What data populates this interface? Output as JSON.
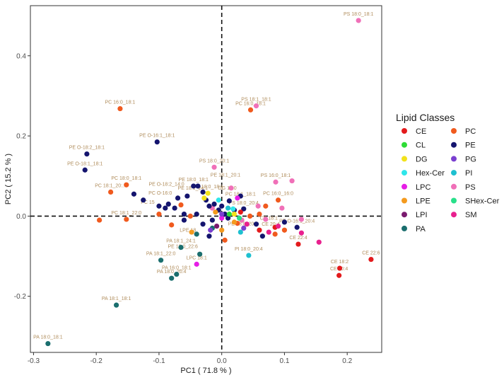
{
  "chart_data": {
    "type": "scatter",
    "title": "",
    "xlabel": "PC1 ( 71.8 % )",
    "ylabel": "PC2 ( 15.2 % )",
    "xlim": [
      -0.305,
      0.255
    ],
    "ylim": [
      -0.34,
      0.525
    ],
    "xticks": [
      -0.3,
      -0.2,
      -0.1,
      0.0,
      0.1,
      0.2
    ],
    "xtick_labels": [
      "-0.3",
      "-0.2",
      "-0.1",
      "0.0",
      "0.1",
      "0.2"
    ],
    "yticks": [
      -0.2,
      0.0,
      0.2,
      0.4
    ],
    "ytick_labels": [
      "-0.2",
      "0.0",
      "0.2",
      "0.4"
    ],
    "reference_lines": {
      "x": 0,
      "y": 0,
      "style": "dashed"
    },
    "grid": false,
    "legend": {
      "title": "Lipid Classes",
      "placement": "right",
      "entries": [
        {
          "name": "CE",
          "color": "#e31a1c"
        },
        {
          "name": "PC",
          "color": "#f05a1e"
        },
        {
          "name": "CL",
          "color": "#2edc36"
        },
        {
          "name": "PE",
          "color": "#14146e"
        },
        {
          "name": "DG",
          "color": "#f2e21b"
        },
        {
          "name": "PG",
          "color": "#7a3fd0"
        },
        {
          "name": "Hex-Cer",
          "color": "#2fe6ea"
        },
        {
          "name": "PI",
          "color": "#1ec0d0"
        },
        {
          "name": "LPC",
          "color": "#e61ee6"
        },
        {
          "name": "PS",
          "color": "#f070b8"
        },
        {
          "name": "LPE",
          "color": "#f49a1e"
        },
        {
          "name": "SHex-Cer",
          "color": "#28e08a"
        },
        {
          "name": "LPI",
          "color": "#7a1a6e"
        },
        {
          "name": "SM",
          "color": "#e8208e"
        },
        {
          "name": "PA",
          "color": "#1a6e6e"
        }
      ]
    },
    "series": [
      {
        "name": "PS",
        "points": [
          {
            "x": 0.218,
            "y": 0.488,
            "label": "PS 18:0_18:1"
          },
          {
            "x": 0.055,
            "y": 0.275,
            "label": "PS 18:1_18:1"
          },
          {
            "x": -0.012,
            "y": 0.122,
            "label": "PS 18:0_20:1"
          },
          {
            "x": 0.086,
            "y": 0.085,
            "label": "PS 16:0_18:1"
          },
          {
            "x": 0.112,
            "y": 0.088
          },
          {
            "x": 0.015,
            "y": 0.07
          },
          {
            "x": 0.058,
            "y": 0.025
          },
          {
            "x": 0.096,
            "y": 0.02
          },
          {
            "x": 0.07,
            "y": -0.008
          },
          {
            "x": 0.032,
            "y": -0.01
          },
          {
            "x": -0.015,
            "y": 0.02
          },
          {
            "x": 0.127,
            "y": -0.008
          }
        ]
      },
      {
        "name": "PC",
        "points": [
          {
            "x": -0.162,
            "y": 0.268,
            "label": "PC 16:0_18:1"
          },
          {
            "x": 0.046,
            "y": 0.265,
            "label": "PC 16:0_18:1"
          },
          {
            "x": -0.177,
            "y": 0.06,
            "label": "PC 18:1_20:..."
          },
          {
            "x": -0.152,
            "y": 0.078,
            "label": "PC 18:0_18:1"
          },
          {
            "x": -0.195,
            "y": -0.01
          },
          {
            "x": -0.152,
            "y": -0.008,
            "label": "PC 18:1_22:0"
          },
          {
            "x": -0.1,
            "y": 0.005
          },
          {
            "x": -0.08,
            "y": -0.022
          },
          {
            "x": -0.065,
            "y": 0.028
          },
          {
            "x": -0.05,
            "y": 0.0
          },
          {
            "x": 0.09,
            "y": 0.04,
            "label": "PC 16:0_16:0"
          },
          {
            "x": 0.07,
            "y": 0.025
          },
          {
            "x": 0.06,
            "y": 0.005
          },
          {
            "x": 0.025,
            "y": -0.018
          },
          {
            "x": 0.005,
            "y": -0.06
          },
          {
            "x": 0.1,
            "y": -0.035
          },
          {
            "x": 0.085,
            "y": -0.045
          },
          {
            "x": 0.045,
            "y": 0.0
          }
        ]
      },
      {
        "name": "PE",
        "points": [
          {
            "x": -0.215,
            "y": 0.155,
            "label": "PE O-18:2_18:1"
          },
          {
            "x": -0.218,
            "y": 0.115,
            "label": "PE O-18:1_18:1"
          },
          {
            "x": -0.103,
            "y": 0.185,
            "label": "PE O-16:1_18:1"
          },
          {
            "x": -0.14,
            "y": 0.055
          },
          {
            "x": -0.125,
            "y": 0.04
          },
          {
            "x": -0.1,
            "y": 0.025
          },
          {
            "x": -0.09,
            "y": 0.02
          },
          {
            "x": -0.07,
            "y": 0.045
          },
          {
            "x": -0.055,
            "y": 0.05
          },
          {
            "x": -0.045,
            "y": 0.075,
            "label": "PE 18:0_18:1"
          },
          {
            "x": -0.038,
            "y": 0.075
          },
          {
            "x": -0.03,
            "y": 0.06
          },
          {
            "x": -0.025,
            "y": 0.04
          },
          {
            "x": -0.02,
            "y": 0.025
          },
          {
            "x": -0.012,
            "y": 0.03
          },
          {
            "x": -0.005,
            "y": 0.015
          },
          {
            "x": 0.0,
            "y": 0.025
          },
          {
            "x": 0.005,
            "y": 0.005
          },
          {
            "x": 0.012,
            "y": 0.038
          },
          {
            "x": 0.02,
            "y": 0.015
          },
          {
            "x": 0.03,
            "y": 0.05
          },
          {
            "x": 0.035,
            "y": 0.018
          },
          {
            "x": -0.06,
            "y": -0.01
          },
          {
            "x": -0.04,
            "y": 0.005
          },
          {
            "x": -0.03,
            "y": -0.02
          },
          {
            "x": -0.015,
            "y": -0.01
          },
          {
            "x": 0.01,
            "y": -0.005
          },
          {
            "x": 0.1,
            "y": -0.015
          },
          {
            "x": 0.12,
            "y": -0.028,
            "label": "PE O-16:1_20:4"
          },
          {
            "x": 0.055,
            "y": -0.02
          },
          {
            "x": -0.075,
            "y": 0.02
          },
          {
            "x": -0.06,
            "y": 0.005
          },
          {
            "x": -0.085,
            "y": 0.03
          },
          {
            "x": 0.065,
            "y": -0.05
          },
          {
            "x": -0.02,
            "y": -0.05
          }
        ]
      },
      {
        "name": "CE",
        "points": [
          {
            "x": 0.238,
            "y": -0.108,
            "label": "CE 22:6"
          },
          {
            "x": 0.188,
            "y": -0.13,
            "label": "CE 18:2"
          },
          {
            "x": 0.187,
            "y": -0.148,
            "label": "CE 20:4"
          },
          {
            "x": 0.122,
            "y": -0.07,
            "label": "CE 22:4"
          },
          {
            "x": 0.06,
            "y": -0.035
          },
          {
            "x": 0.085,
            "y": -0.028
          },
          {
            "x": 0.03,
            "y": 0.01
          }
        ]
      },
      {
        "name": "PA",
        "points": [
          {
            "x": -0.277,
            "y": -0.318,
            "label": "PA 18:0_18:1"
          },
          {
            "x": -0.168,
            "y": -0.222,
            "label": "PA 18:1_18:1"
          },
          {
            "x": -0.08,
            "y": -0.155,
            "label": "PA 18:0_20:4"
          },
          {
            "x": -0.072,
            "y": -0.145,
            "label": "PA 16:0_18:1"
          },
          {
            "x": -0.097,
            "y": -0.11,
            "label": "PA 18:1_22:0"
          },
          {
            "x": -0.035,
            "y": -0.095
          },
          {
            "x": -0.065,
            "y": -0.078,
            "label": "PA 18:1_24:1"
          },
          {
            "x": -0.04,
            "y": -0.045
          },
          {
            "x": -0.015,
            "y": -0.03
          }
        ]
      },
      {
        "name": "PI",
        "points": [
          {
            "x": 0.043,
            "y": -0.098,
            "label": "PI 18:0_20:4"
          },
          {
            "x": 0.01,
            "y": 0.02
          },
          {
            "x": 0.03,
            "y": -0.04
          }
        ]
      },
      {
        "name": "LPC",
        "points": [
          {
            "x": -0.04,
            "y": -0.12,
            "label": "LPC 18:1"
          },
          {
            "x": 0.0,
            "y": -0.005
          },
          {
            "x": 0.025,
            "y": 0.045
          }
        ]
      },
      {
        "name": "LPE",
        "points": [
          {
            "x": -0.048,
            "y": -0.04
          },
          {
            "x": 0.0,
            "y": -0.035
          },
          {
            "x": 0.02,
            "y": -0.015
          },
          {
            "x": -0.01,
            "y": 0.01
          }
        ]
      },
      {
        "name": "DG",
        "points": [
          {
            "x": -0.022,
            "y": 0.057,
            "label": "DG 18:0_18:1"
          },
          {
            "x": -0.028,
            "y": 0.045
          },
          {
            "x": 0.02,
            "y": 0.005
          }
        ]
      },
      {
        "name": "SM",
        "points": [
          {
            "x": 0.155,
            "y": -0.065
          },
          {
            "x": 0.127,
            "y": -0.042
          },
          {
            "x": 0.09,
            "y": -0.025
          },
          {
            "x": 0.075,
            "y": -0.04
          },
          {
            "x": 0.04,
            "y": -0.02
          }
        ]
      },
      {
        "name": "PG",
        "points": [
          {
            "x": -0.018,
            "y": -0.035
          },
          {
            "x": 0.035,
            "y": -0.03
          },
          {
            "x": 0.0,
            "y": 0.005
          }
        ]
      },
      {
        "name": "Hex-Cer",
        "points": [
          {
            "x": 0.018,
            "y": 0.018
          },
          {
            "x": -0.005,
            "y": 0.04
          }
        ]
      },
      {
        "name": "CL",
        "points": [
          {
            "x": 0.012,
            "y": 0.005
          }
        ]
      },
      {
        "name": "SHex-Cer",
        "points": [
          {
            "x": 0.028,
            "y": -0.005
          }
        ]
      },
      {
        "name": "LPI",
        "points": [
          {
            "x": -0.008,
            "y": -0.025
          }
        ]
      }
    ],
    "annotations": [
      {
        "text": "PE O-18:2_14:0",
        "x": -0.088,
        "y": 0.065
      },
      {
        "text": "PC O-16:0",
        "x": -0.098,
        "y": 0.043
      },
      {
        "text": "PE 18:1_24:1",
        "x": -0.046,
        "y": 0.055
      },
      {
        "text": "PE 18:1_20:1",
        "x": 0.006,
        "y": 0.088
      },
      {
        "text": "DG 18:0",
        "x": 0.009,
        "y": 0.055
      },
      {
        "text": "PC 18:1_18:1",
        "x": 0.03,
        "y": 0.04
      },
      {
        "text": "PS 18:0_20:4",
        "x": 0.035,
        "y": 0.018
      },
      {
        "text": "PE 18:0_20:4",
        "x": 0.034,
        "y": -0.034
      },
      {
        "text": "CE 18:1",
        "x": 0.075,
        "y": -0.02
      },
      {
        "text": "CE 20:4",
        "x": 0.078,
        "y": -0.035
      },
      {
        "text": "PE 18:0_22:6",
        "x": -0.062,
        "y": -0.09
      },
      {
        "text": "PC 15",
        "x": -0.118,
        "y": 0.02
      },
      {
        "text": "LPE 18",
        "x": -0.054,
        "y": -0.05
      }
    ]
  }
}
